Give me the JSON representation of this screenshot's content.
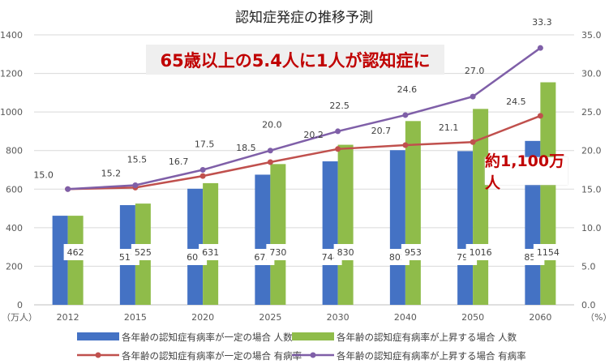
{
  "chart_data": {
    "type": "bar+line",
    "title": "認知症発症の推移予測",
    "categories": [
      "2012",
      "2015",
      "2020",
      "2025",
      "2030",
      "2040",
      "2050",
      "2060"
    ],
    "y_left": {
      "label": "（万人）",
      "range": [
        0,
        1400
      ],
      "ticks": [
        0,
        200,
        400,
        600,
        800,
        1000,
        1200,
        1400
      ]
    },
    "y_right": {
      "label": "（%）",
      "range": [
        0,
        35
      ],
      "ticks": [
        "0.0",
        "5.0",
        "10.0",
        "15.0",
        "20.0",
        "25.0",
        "30.0",
        "35.0"
      ]
    },
    "grid": true,
    "legend_position": "bottom",
    "series": [
      {
        "name": "各年齢の認知症有病率が一定の場合 人数",
        "type": "bar",
        "axis": "left",
        "color": "#4472c4",
        "values": [
          462,
          517,
          602,
          675,
          744,
          802,
          797,
          850
        ],
        "labels": [
          "",
          "517",
          "602",
          "675",
          "744",
          "802",
          "797",
          "850"
        ]
      },
      {
        "name": "各年齢の認知症有病率が上昇する場合 人数",
        "type": "bar",
        "axis": "left",
        "color": "#8fbc4a",
        "values": [
          462,
          525,
          631,
          730,
          830,
          953,
          1016,
          1154
        ],
        "labels": [
          "462",
          "525",
          "631",
          "730",
          "830",
          "953",
          "1016",
          "1154"
        ]
      },
      {
        "name": "各年齢の認知症有病率が一定の場合 有病率",
        "type": "line",
        "axis": "right",
        "color": "#c0504d",
        "values": [
          15.0,
          15.2,
          16.7,
          18.5,
          20.2,
          20.7,
          21.1,
          24.5
        ],
        "labels": [
          "15.0",
          "15.2",
          "16.7",
          "18.5",
          "20.2",
          "20.7",
          "21.1",
          "24.5"
        ]
      },
      {
        "name": "各年齢の認知症有病率が上昇する場合 有病率",
        "type": "line",
        "axis": "right",
        "color": "#7f5fa8",
        "values": [
          15.0,
          15.5,
          17.5,
          20.0,
          22.5,
          24.6,
          27.0,
          33.3
        ],
        "labels": [
          "",
          "15.5",
          "17.5",
          "20.0",
          "22.5",
          "24.6",
          "27.0",
          "33.3"
        ]
      }
    ],
    "annotations": [
      "65歳以上の5.4人に1人が認知症に",
      "約1,100万人"
    ]
  }
}
